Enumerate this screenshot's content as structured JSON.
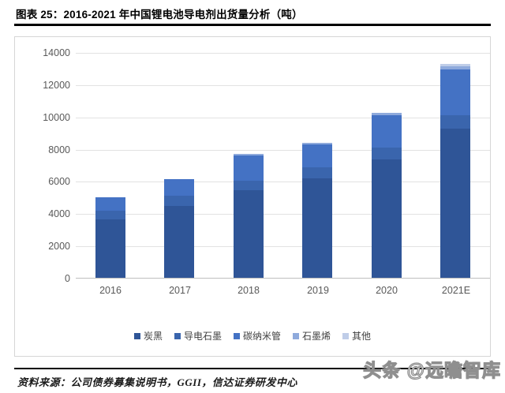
{
  "page": {
    "title": "图表 25：2016-2021 年中国锂电池导电剂出货量分析（吨）",
    "source_note": "资料来源：公司债券募集说明书，GGII，信达证券研发中心",
    "watermark": "头条 @远瞻智库"
  },
  "chart_data": {
    "type": "bar",
    "stacked": true,
    "title": "2016-2021 年中国锂电池导电剂出货量分析（吨）",
    "xlabel": "",
    "ylabel": "",
    "unit": "吨",
    "categories": [
      "2016",
      "2017",
      "2018",
      "2019",
      "2020",
      "2021E"
    ],
    "series": [
      {
        "id": "carbon-black",
        "name": "炭黑",
        "color": "#2F5597",
        "values": [
          3600,
          4450,
          5450,
          6150,
          7350,
          9250
        ]
      },
      {
        "id": "conductive-graphite",
        "name": "导电石墨",
        "color": "#3A65AD",
        "values": [
          550,
          650,
          550,
          700,
          750,
          850
        ]
      },
      {
        "id": "carbon-nanotube",
        "name": "碳纳米管",
        "color": "#4472C4",
        "values": [
          850,
          1000,
          1600,
          1400,
          2000,
          2800
        ]
      },
      {
        "id": "graphene",
        "name": "石墨烯",
        "color": "#8FAADC",
        "values": [
          0,
          0,
          100,
          100,
          150,
          200
        ]
      },
      {
        "id": "others",
        "name": "其他",
        "color": "#BFCDE8",
        "values": [
          0,
          0,
          0,
          0,
          0,
          150
        ]
      }
    ],
    "totals": [
      5000,
      6100,
      7700,
      8350,
      10250,
      13250
    ],
    "ylim": [
      0,
      14000
    ],
    "yticks": [
      0,
      2000,
      4000,
      6000,
      8000,
      10000,
      12000,
      14000
    ],
    "grid": true,
    "legend_position": "bottom",
    "tick_color": "#595959",
    "gridline_color": "#e2e2e2"
  }
}
